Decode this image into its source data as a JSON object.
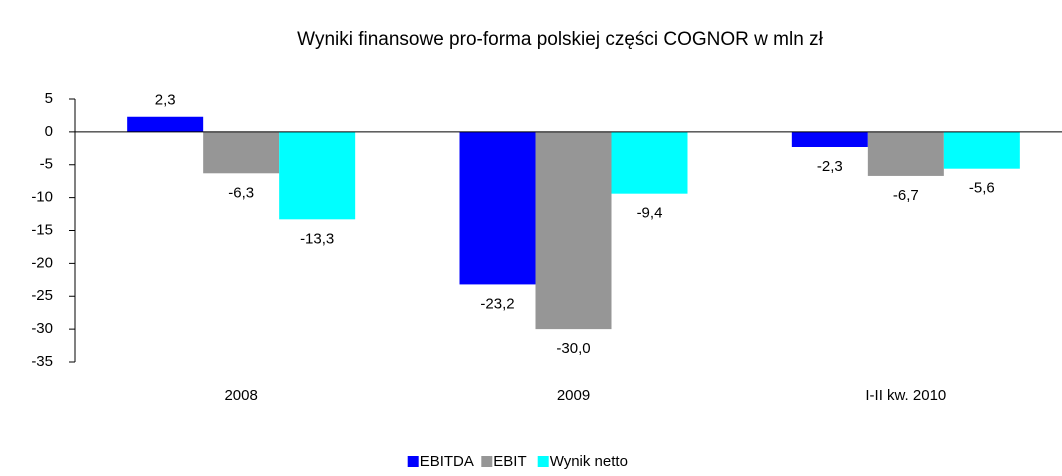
{
  "chart_data": {
    "type": "bar",
    "title": "Wyniki finansowe pro-forma polskiej części COGNOR w mln zł",
    "categories": [
      "2008",
      "2009",
      "I-II kw. 2010"
    ],
    "series": [
      {
        "name": "EBITDA",
        "color": "#0000ff",
        "values": [
          2.3,
          -23.2,
          -2.3
        ],
        "value_labels": [
          "2,3",
          "-23,2",
          "-2,3"
        ]
      },
      {
        "name": "EBIT",
        "color": "#969696",
        "values": [
          -6.3,
          -30.0,
          -6.7
        ],
        "value_labels": [
          "-6,3",
          "-30,0",
          "-6,7"
        ]
      },
      {
        "name": "Wynik netto",
        "color": "#00ffff",
        "values": [
          -13.3,
          -9.4,
          -5.6
        ],
        "value_labels": [
          "-13,3",
          "-9,4",
          "-5,6"
        ]
      }
    ],
    "ylim": [
      -35,
      5
    ],
    "yticks": [
      5,
      0,
      -5,
      -10,
      -15,
      -20,
      -25,
      -30,
      -35
    ],
    "legend": "bottom"
  }
}
